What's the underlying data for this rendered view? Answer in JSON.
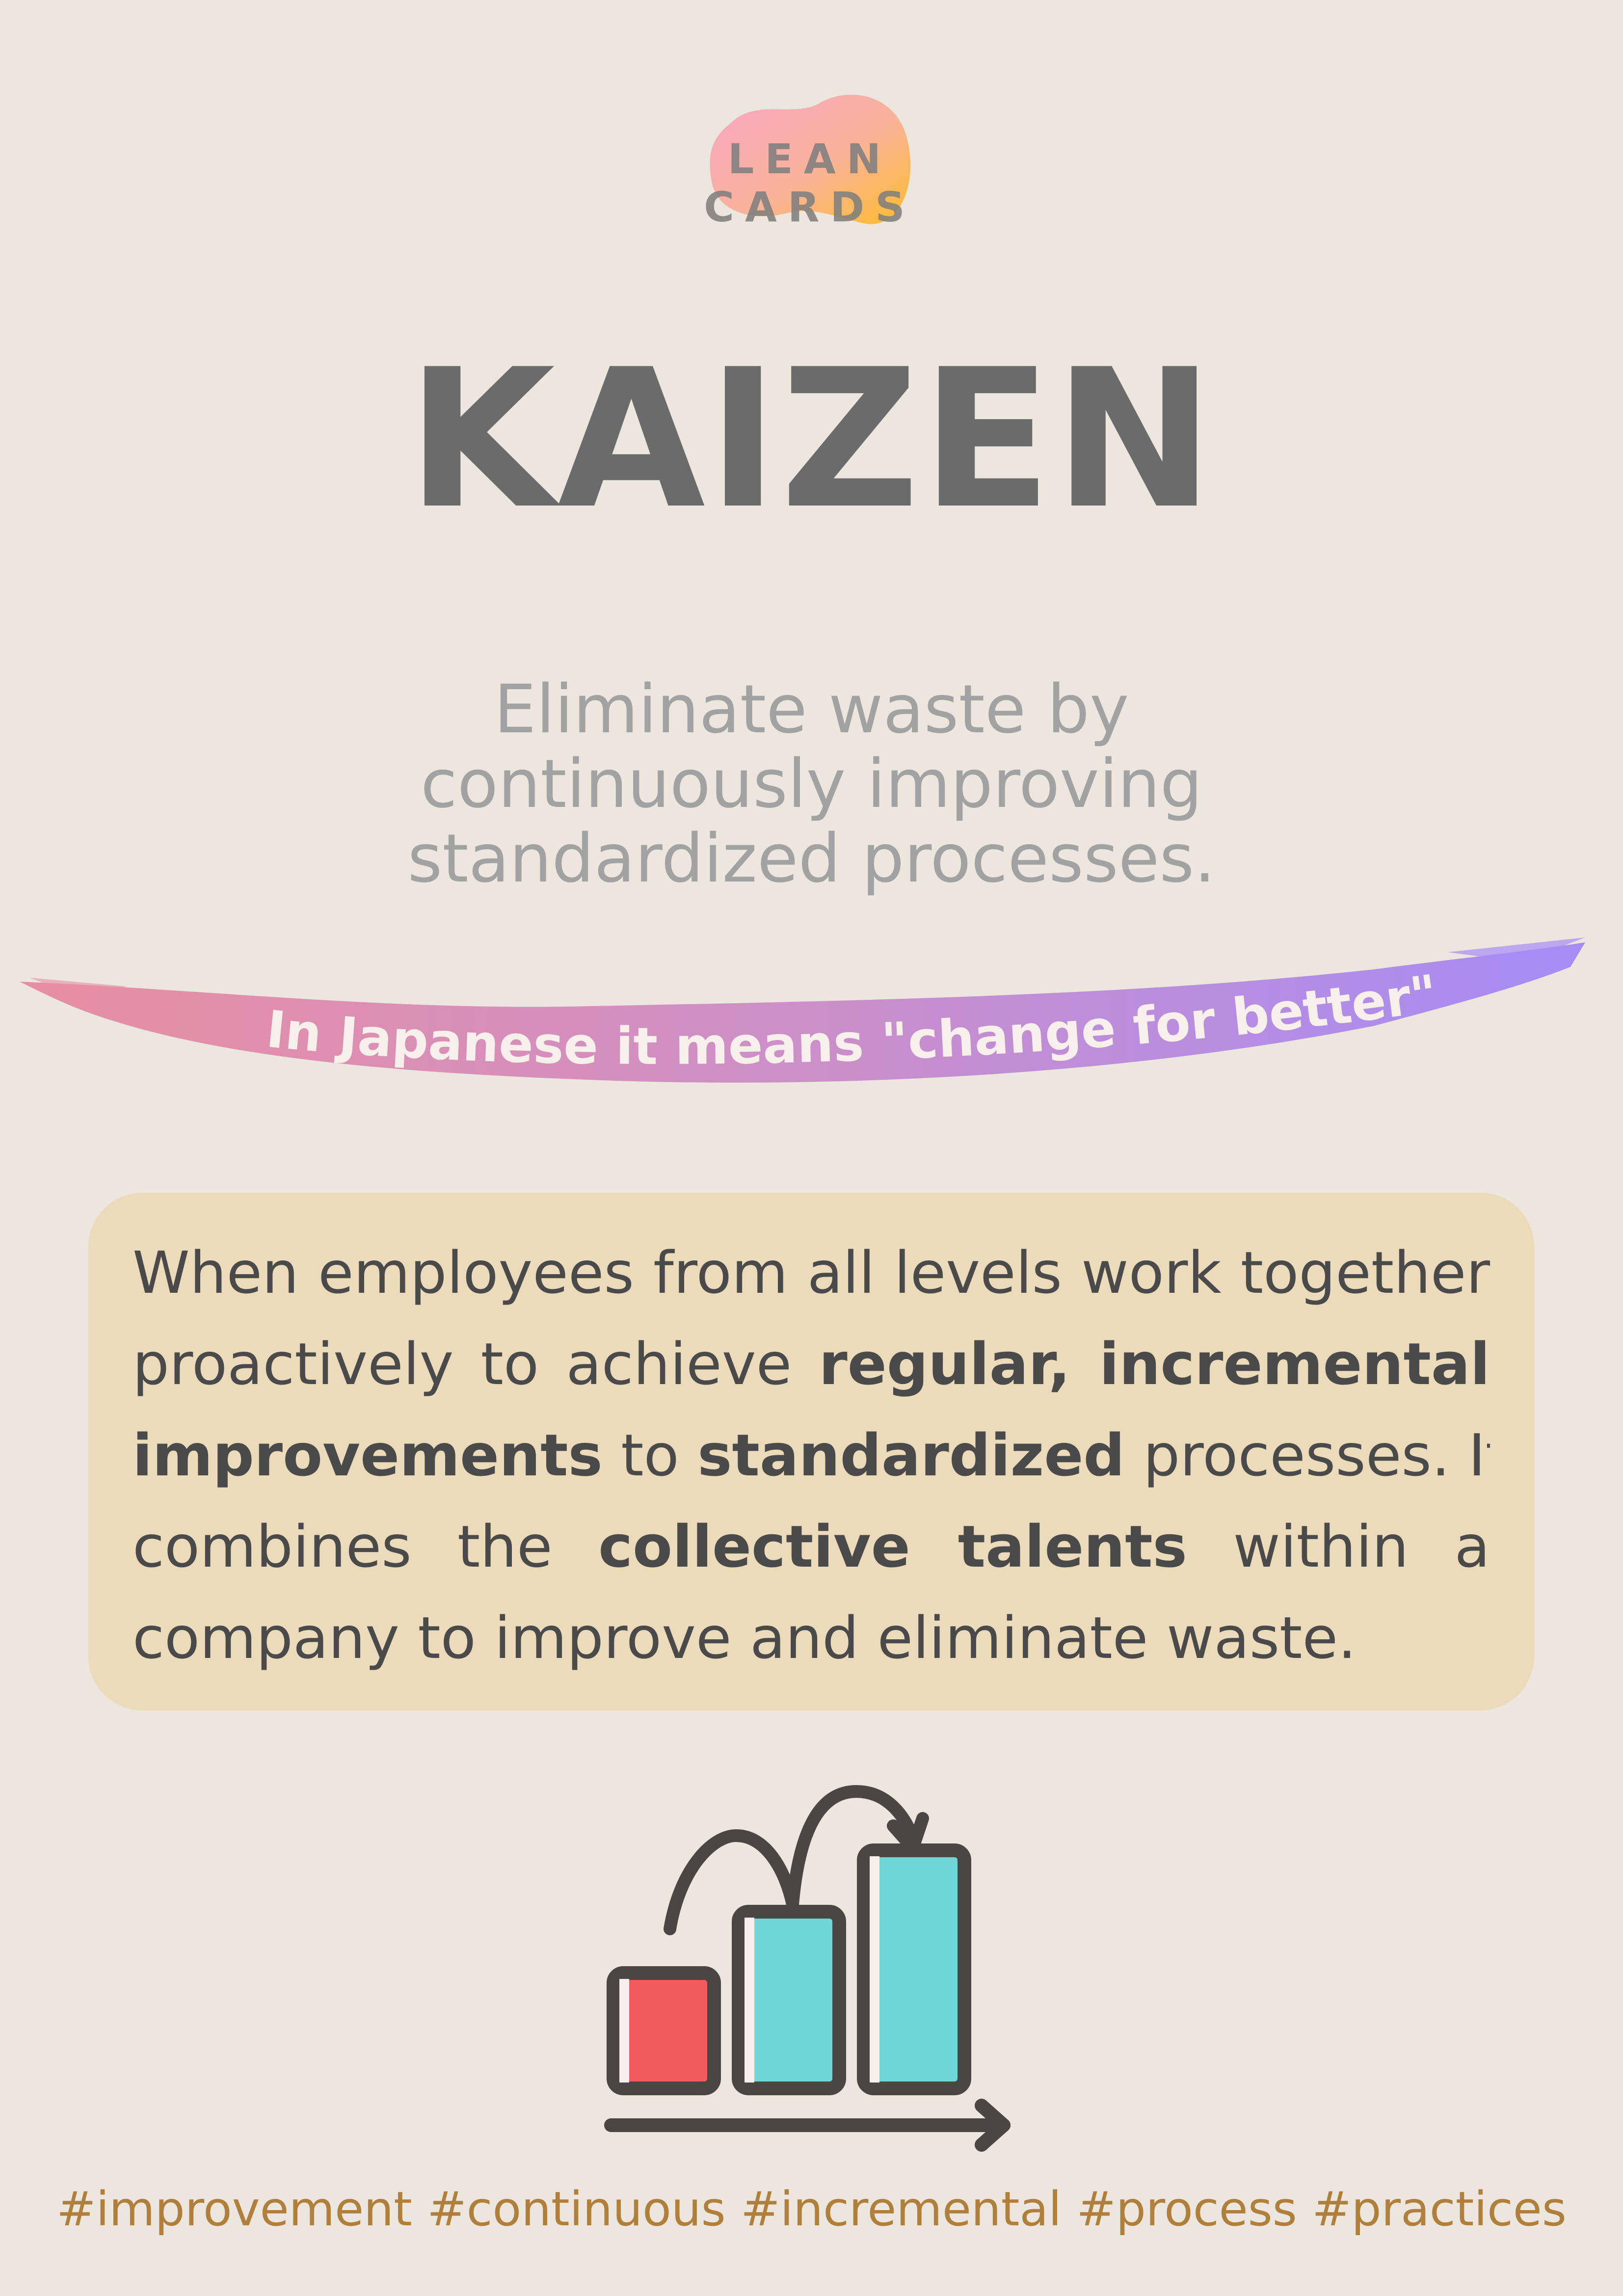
{
  "brand": {
    "name": "LEAN CARDS"
  },
  "card": {
    "title": "KAIZEN",
    "subtitle_lines": [
      "Eliminate waste by",
      "continuously improving",
      "standardized processes."
    ],
    "banner_text": "In Japanese it means \"change for better\"",
    "description": {
      "line1": "When employees from all levels work together",
      "line2_a": "proactively to achieve ",
      "line2_b": "regular, incremental",
      "line3_a": "improvements",
      "line3_b": " to ",
      "line3_c": "standardized",
      "line3_d": " processes. It",
      "line4_a": "combines the ",
      "line4_b": "collective talents",
      "line4_c": " within a",
      "line5": "company to improve and eliminate waste."
    },
    "hashtags": "#improvement #continuous #incremental #process #practices"
  },
  "colors": {
    "background": "#ebe7de",
    "title": "#6b6b6b",
    "subtitle": "#a2a2a2",
    "box": "#ecdbba",
    "hashtags": "#b07f3c",
    "banner_start": "#e88fa0",
    "banner_end": "#a58cf5",
    "bar_red": "#f25a5c",
    "bar_teal": "#6fd7d8",
    "icon_stroke": "#4a4644"
  },
  "icons": [
    "logo-blob",
    "kaizen-growth-chart-icon"
  ]
}
